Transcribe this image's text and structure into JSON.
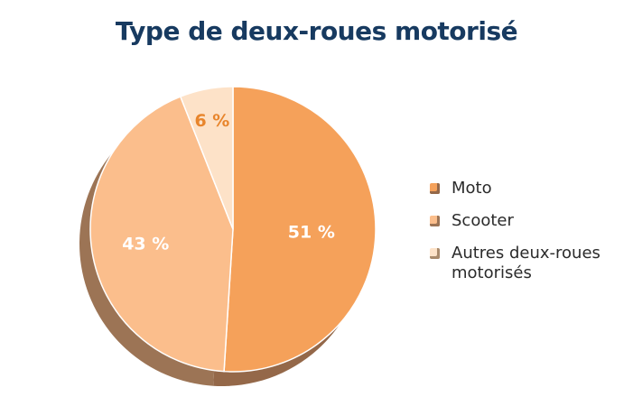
{
  "chart_data": {
    "type": "pie",
    "title": "Type de deux-roues motorisé",
    "slices": [
      {
        "label": "Moto",
        "value": 51,
        "display": "51 %",
        "color": "#f5a15a",
        "shadow": "#946849",
        "label_color": "#ffffff"
      },
      {
        "label": "Scooter",
        "value": 43,
        "display": "43 %",
        "color": "#fbbe8c",
        "shadow": "#9c7455",
        "label_color": "#ffffff"
      },
      {
        "label": "Autres deux-roues motorisés",
        "value": 6,
        "display": "6 %",
        "color": "#fde2c8",
        "shadow": "#a98a6c",
        "label_color": "#e8852c"
      }
    ],
    "legend_position": "right"
  }
}
